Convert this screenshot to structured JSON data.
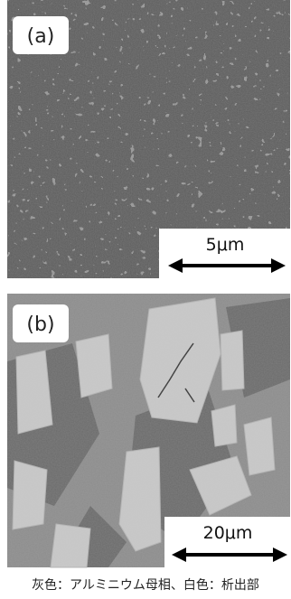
{
  "panels": [
    {
      "label": "(a)",
      "scale_bar": "5μm"
    },
    {
      "label": "(b)",
      "scale_bar": "20μm"
    }
  ],
  "caption": "灰色：アルミニウム母相、白色：析出部"
}
